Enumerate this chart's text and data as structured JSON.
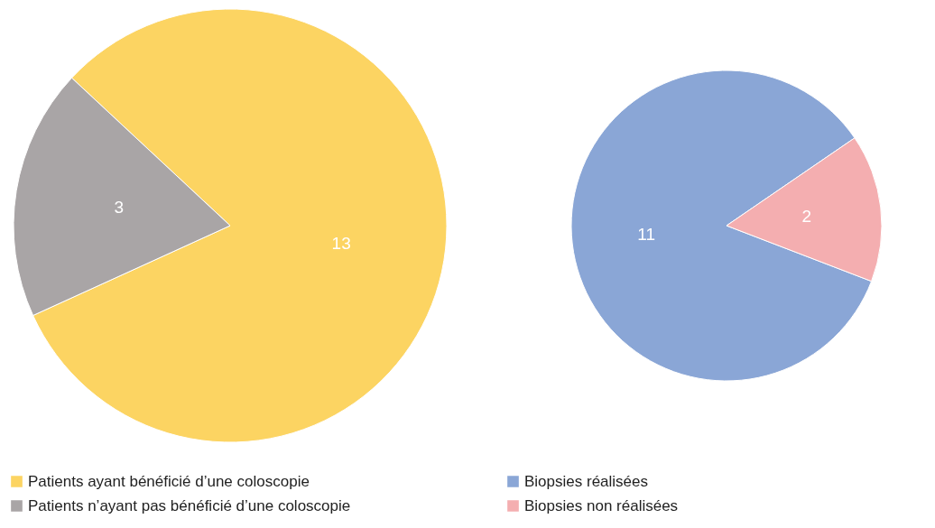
{
  "chart_data": [
    {
      "type": "pie",
      "categories": [
        "Patients ayant bénéficié d’une coloscopie",
        "Patients n’ayant pas bénéficié d’une coloscopie"
      ],
      "values": [
        13,
        3
      ],
      "colors": [
        "#fcd462",
        "#a9a5a6"
      ],
      "data_labels": true,
      "legend": "bottom"
    },
    {
      "type": "pie",
      "categories": [
        "Biopsies réalisées",
        "Biopsies non réalisées"
      ],
      "values": [
        11,
        2
      ],
      "colors": [
        "#8aa6d6",
        "#f4aeb0"
      ],
      "data_labels": true,
      "legend": "bottom"
    }
  ]
}
